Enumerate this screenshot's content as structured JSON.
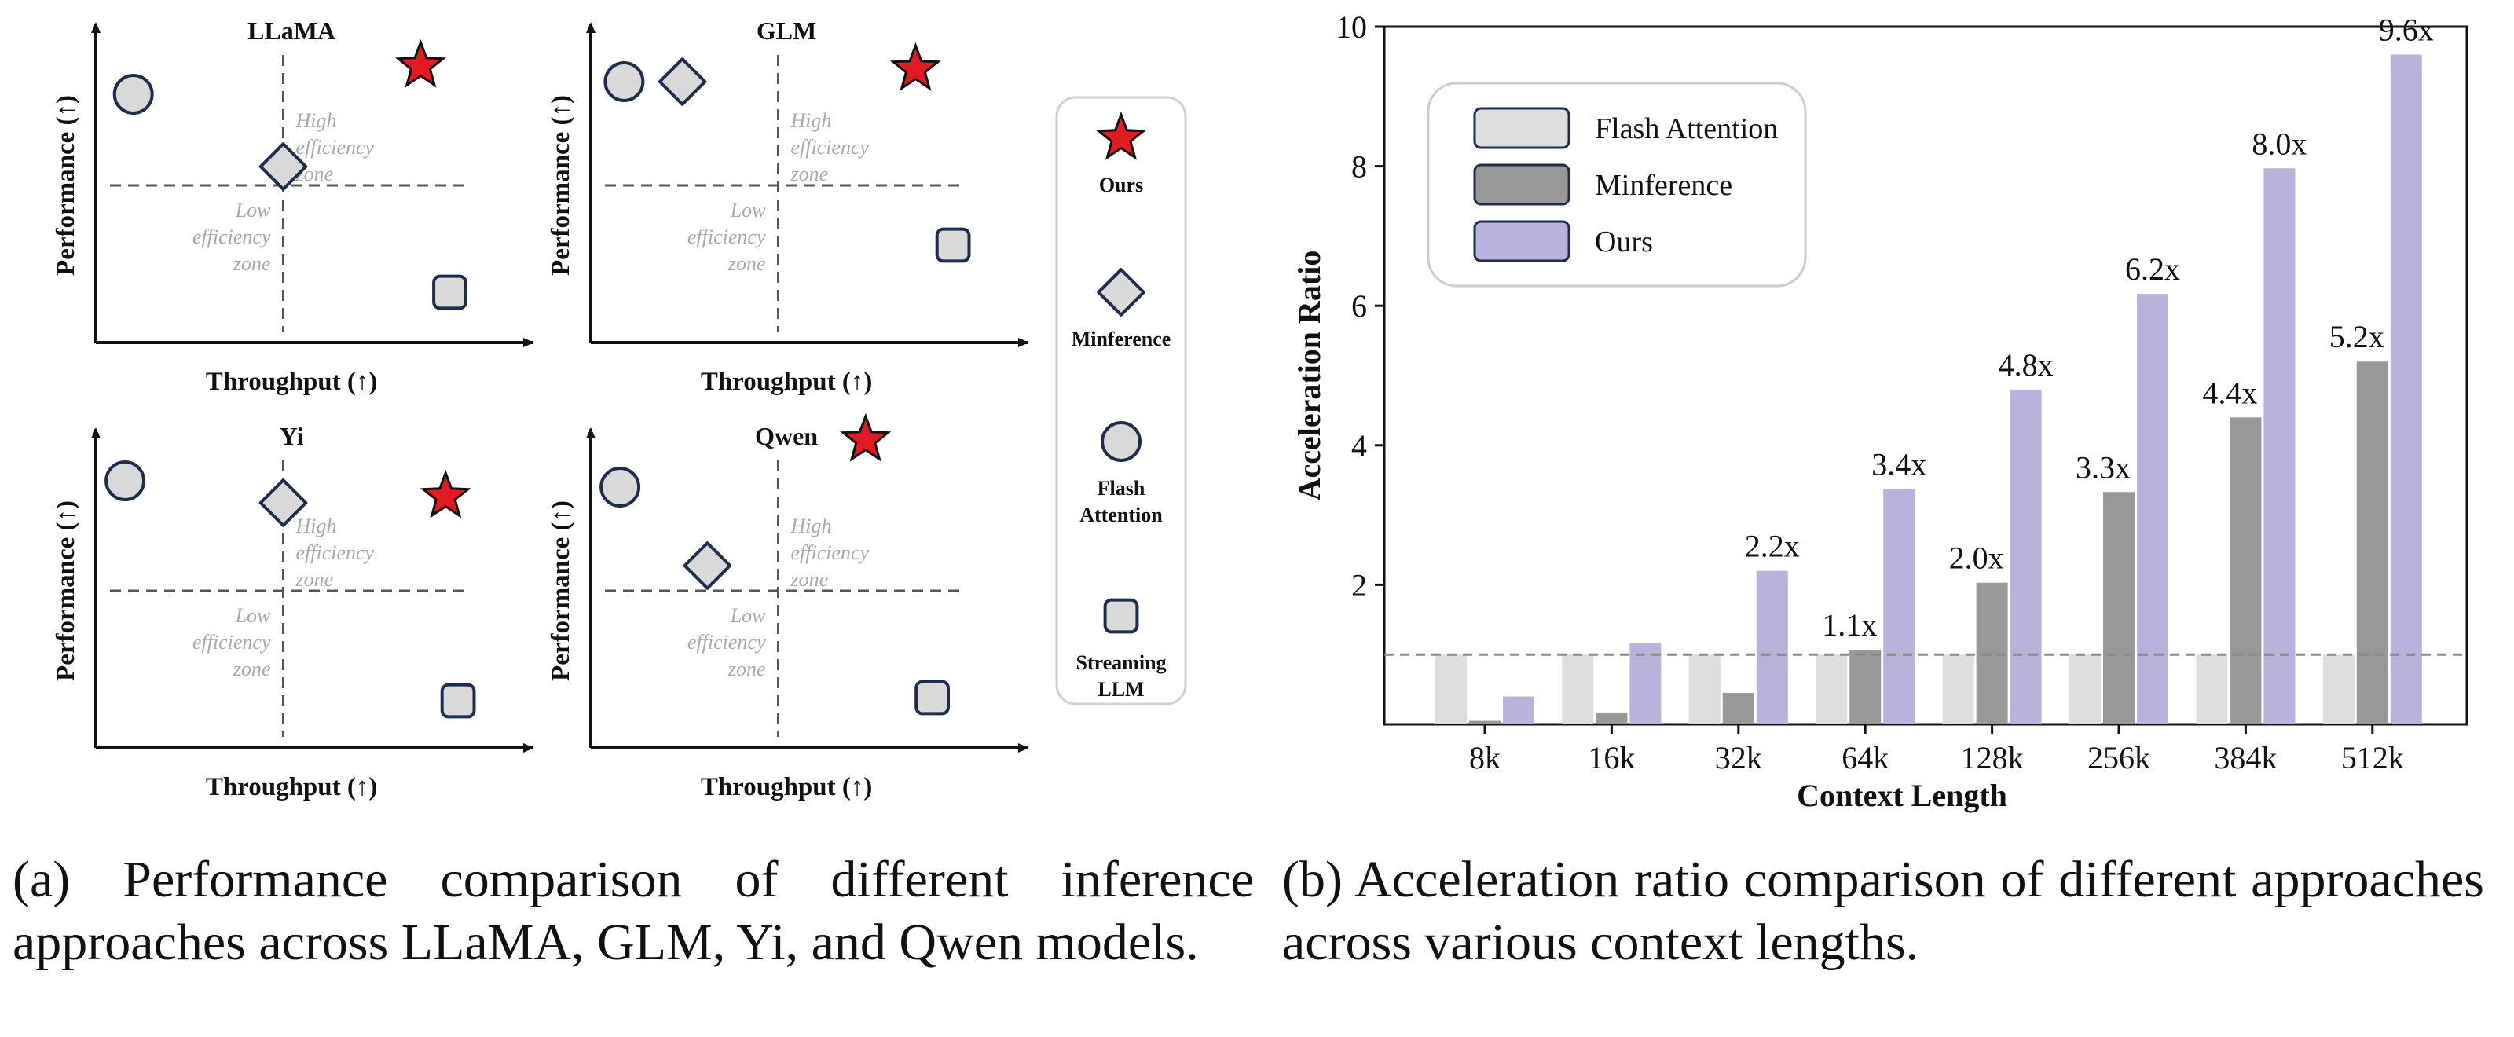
{
  "captions": {
    "a": "(a) Performance comparison of different inference approaches across LLaMA, GLM, Yi, and Qwen models.",
    "b": "(b) Acceleration ratio comparison of different approaches across various context lengths."
  },
  "colors": {
    "axis": "#111111",
    "zone_text": "#a9a9a9",
    "marker_fill": "#d9d9d9",
    "marker_stroke": "#1f2d4d",
    "star_fill": "#e21b23",
    "flash": "#dedede",
    "minference": "#989898",
    "ours": "#b9b2dd",
    "ref_line": "#888888"
  },
  "chart_data": [
    {
      "type": "scatter",
      "description": "qualitative quadrant plots",
      "panel_label": "(a)",
      "xlabel": "Throughput (↑)",
      "ylabel": "Performance (↑)",
      "zones": {
        "high": [
          "High",
          "efficiency",
          "zone"
        ],
        "low": [
          "Low",
          "efficiency",
          "zone"
        ]
      },
      "legend": [
        {
          "key": "ours",
          "marker": "star",
          "label": [
            "Ours"
          ]
        },
        {
          "key": "minference",
          "marker": "diamond",
          "label": [
            "Minference"
          ]
        },
        {
          "key": "flash",
          "marker": "circle",
          "label": [
            "Flash",
            "Attention"
          ]
        },
        {
          "key": "streaming",
          "marker": "square",
          "label": [
            "Streaming",
            "LLM"
          ]
        }
      ],
      "panels": [
        {
          "title": "LLaMA",
          "points": {
            "flash": [
              0.09,
              0.79
            ],
            "minference": [
              0.45,
              0.56
            ],
            "ours": [
              0.78,
              0.88
            ],
            "streaming": [
              0.85,
              0.16
            ]
          }
        },
        {
          "title": "GLM",
          "points": {
            "flash": [
              0.08,
              0.83
            ],
            "minference": [
              0.22,
              0.83
            ],
            "ours": [
              0.78,
              0.87
            ],
            "streaming": [
              0.87,
              0.31
            ]
          }
        },
        {
          "title": "Yi",
          "points": {
            "flash": [
              0.07,
              0.85
            ],
            "minference": [
              0.45,
              0.78
            ],
            "ours": [
              0.84,
              0.8
            ],
            "streaming": [
              0.87,
              0.15
            ]
          }
        },
        {
          "title": "Qwen",
          "points": {
            "flash": [
              0.07,
              0.83
            ],
            "minference": [
              0.28,
              0.58
            ],
            "ours": [
              0.66,
              0.98
            ],
            "streaming": [
              0.82,
              0.16
            ]
          }
        }
      ]
    },
    {
      "type": "bar",
      "panel_label": "(b)",
      "title": "",
      "xlabel": "Context Length",
      "ylabel": "Acceleration Ratio",
      "ylim": [
        0,
        10
      ],
      "yticks": [
        2,
        4,
        6,
        8,
        10
      ],
      "reference_line": 1.0,
      "legend_position": "top-left",
      "categories": [
        "8k",
        "16k",
        "32k",
        "64k",
        "128k",
        "256k",
        "384k",
        "512k"
      ],
      "series": [
        {
          "name": "Flash Attention",
          "key": "flash",
          "values": [
            1,
            1,
            1,
            1,
            1,
            1,
            1,
            1
          ],
          "labels": [
            "",
            "",
            "",
            "",
            "",
            "",
            "",
            ""
          ]
        },
        {
          "name": "Minference",
          "key": "minference",
          "values": [
            0.05,
            0.17,
            0.45,
            1.07,
            2.03,
            3.33,
            4.4,
            5.2
          ],
          "labels": [
            "",
            "",
            "",
            "1.1x",
            "2.0x",
            "3.3x",
            "4.4x",
            "5.2x"
          ]
        },
        {
          "name": "Ours",
          "key": "ours",
          "values": [
            0.4,
            1.17,
            2.2,
            3.37,
            4.8,
            6.17,
            7.97,
            9.6
          ],
          "labels": [
            "",
            "",
            "2.2x",
            "3.4x",
            "4.8x",
            "6.2x",
            "8.0x",
            "9.6x"
          ]
        }
      ]
    }
  ]
}
